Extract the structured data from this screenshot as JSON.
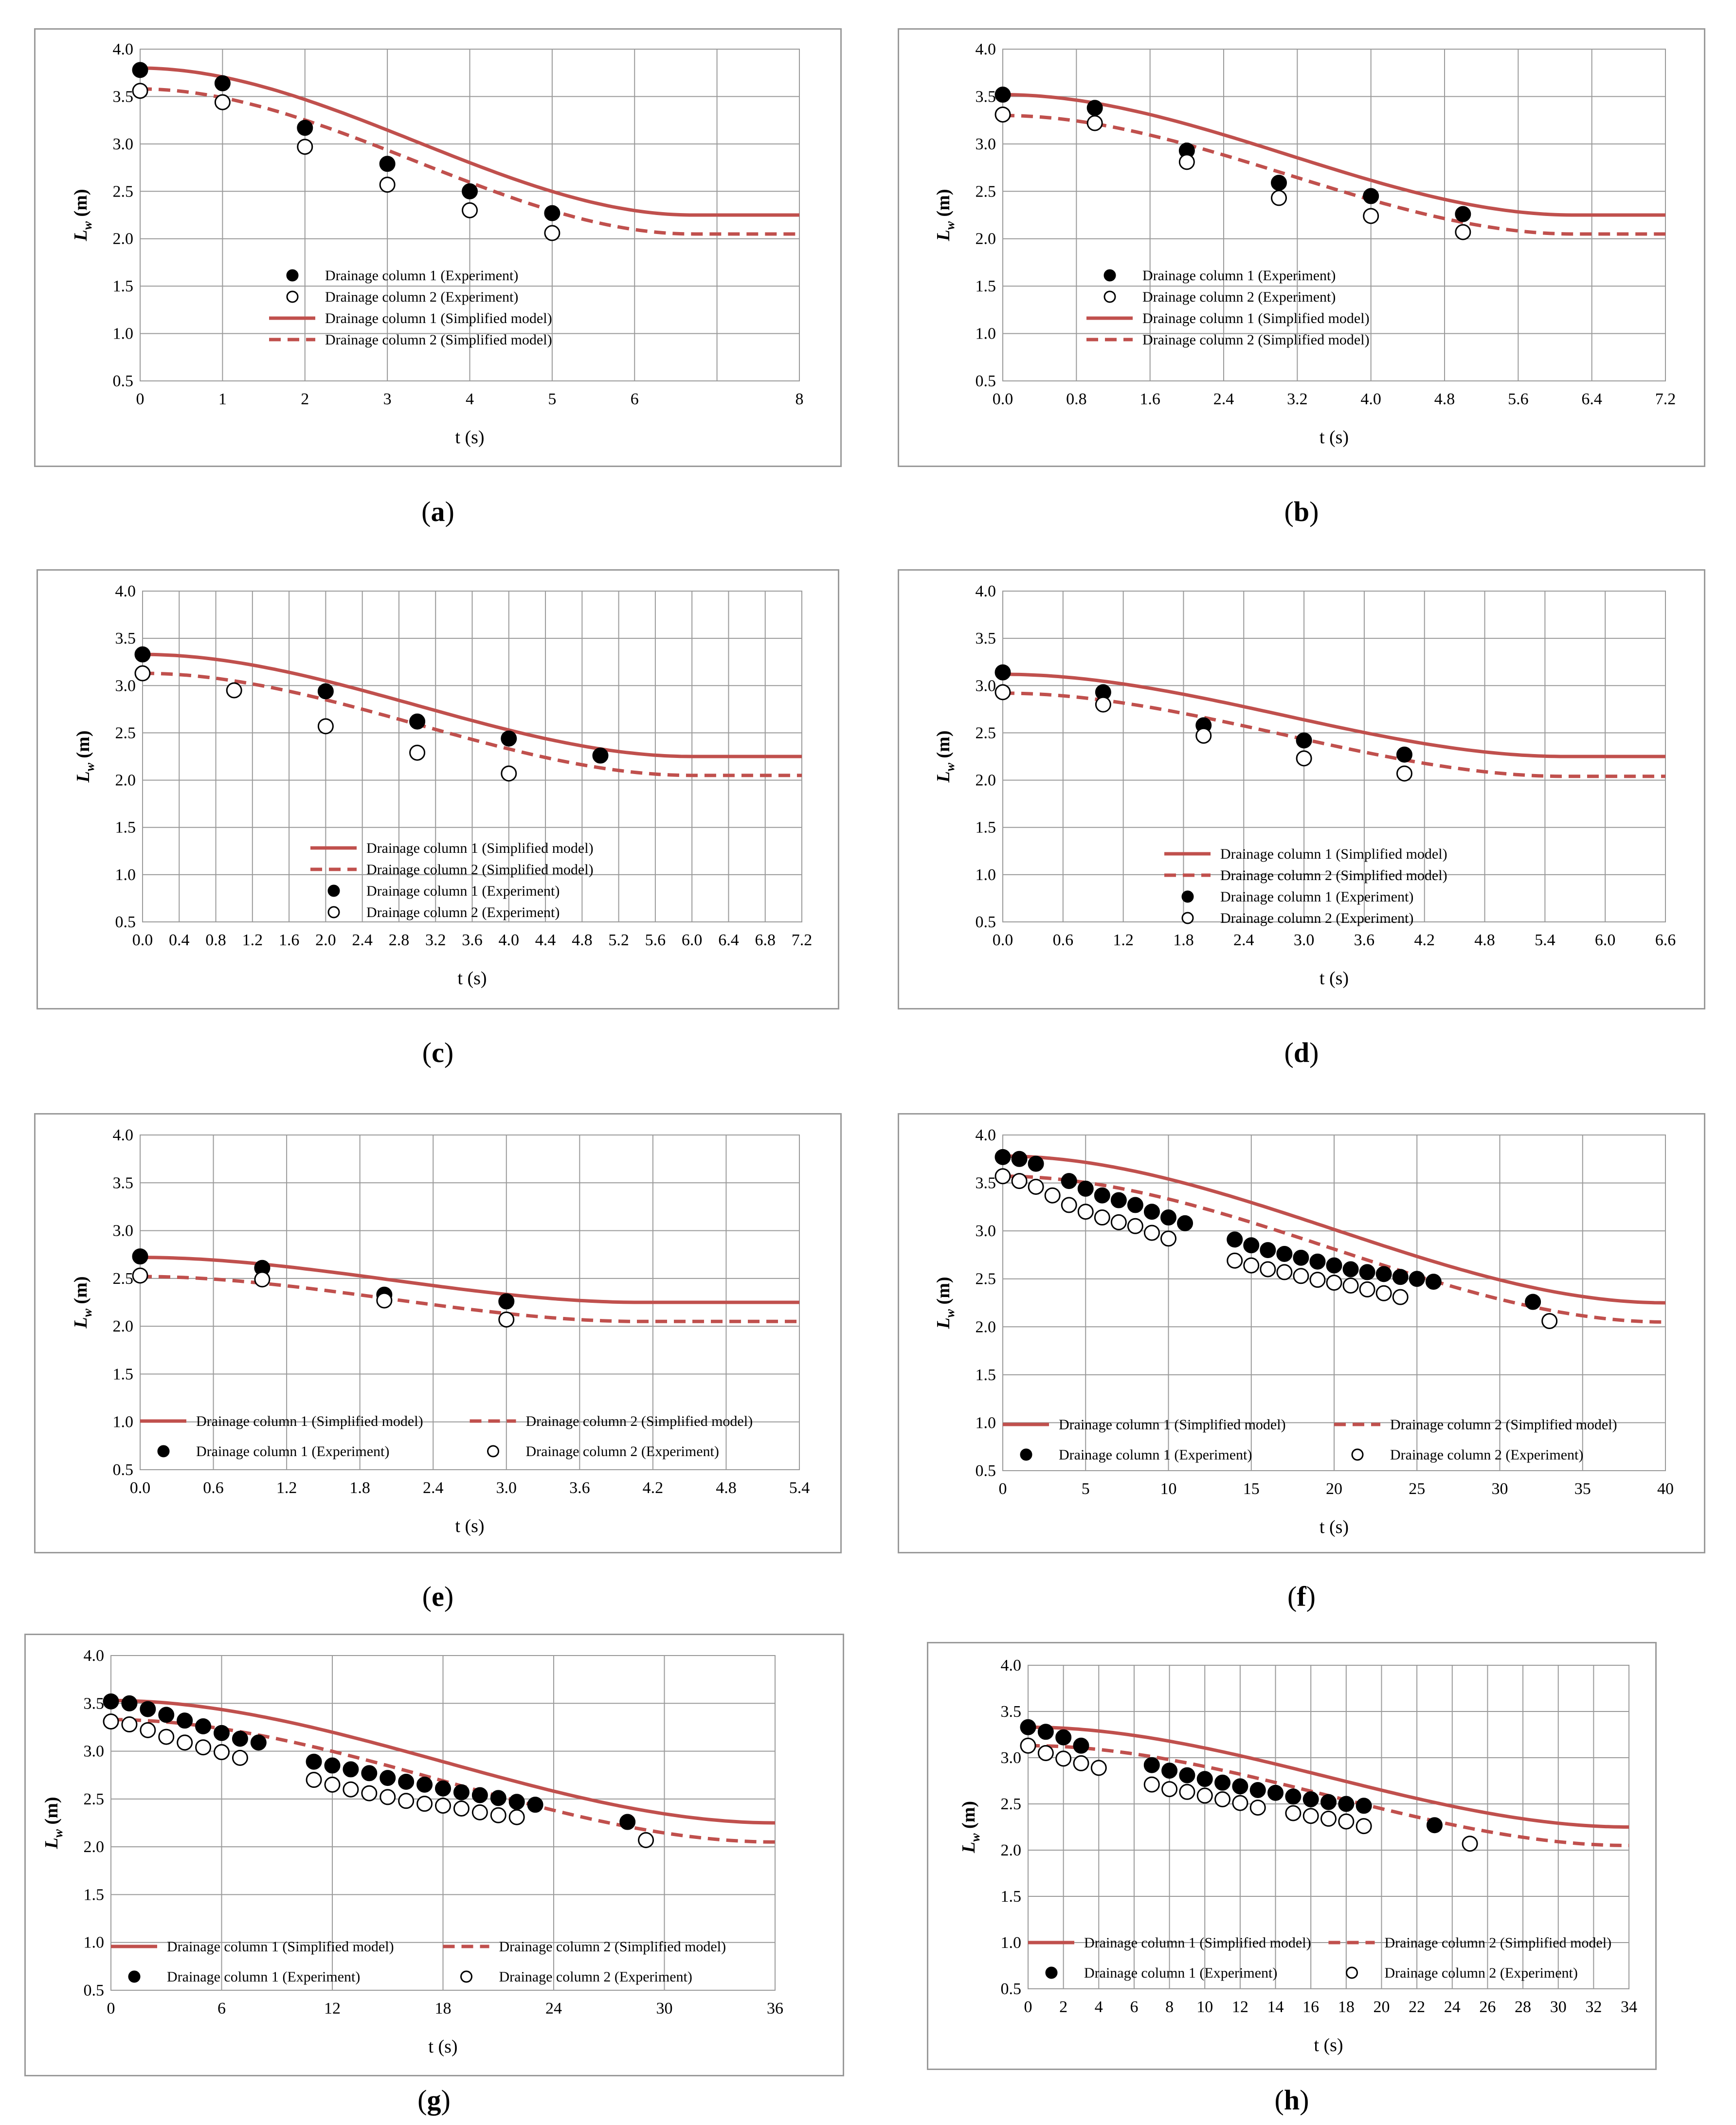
{
  "common": {
    "ylabel_main": "L",
    "ylabel_sub": "w",
    "ylabel_unit": " (m)",
    "xlabel": "t (s)",
    "yticks": [
      "0.5",
      "1.0",
      "1.5",
      "2.0",
      "2.5",
      "3.0",
      "3.5",
      "4.0"
    ],
    "ylim": [
      0.5,
      4.0
    ],
    "colors": {
      "model": "#c0504d",
      "grid": "#9a9a9a",
      "marker": "#000000"
    }
  },
  "legend_labels": {
    "exp1": "Drainage column 1 (Experiment)",
    "exp2": "Drainage column 2 (Experiment)",
    "mod1": "Drainage column 1 (Simplified  model)",
    "mod2": "Drainage column 2 (Simplified  model)"
  },
  "chart_data": [
    {
      "id": "a",
      "caption": "a",
      "type": "line+scatter",
      "xlim": [
        0,
        8
      ],
      "x_gridlines": 8,
      "xticks": [
        "0",
        "1",
        "2",
        "3",
        "4",
        "5",
        "6",
        "8"
      ],
      "xtick_values": [
        0,
        1,
        2,
        3,
        4,
        5,
        6,
        8
      ],
      "legend_layout": "vertical-exp-first",
      "series": [
        {
          "name": "Drainage column 1 (Simplified  model)",
          "kind": "model",
          "style": "solid",
          "start": 3.8,
          "end": 2.25,
          "tend": 6.7
        },
        {
          "name": "Drainage column 2 (Simplified  model)",
          "kind": "model",
          "style": "dashed",
          "start": 3.58,
          "end": 2.05,
          "tend": 6.7
        },
        {
          "name": "Drainage column 1 (Experiment)",
          "kind": "exp",
          "fill": "filled",
          "x": [
            0,
            1,
            2,
            3,
            4,
            5
          ],
          "y": [
            3.78,
            3.64,
            3.17,
            2.79,
            2.5,
            2.27
          ]
        },
        {
          "name": "Drainage column 2 (Experiment)",
          "kind": "exp",
          "fill": "hollow",
          "x": [
            0,
            1,
            2,
            3,
            4,
            5
          ],
          "y": [
            3.56,
            3.44,
            2.97,
            2.57,
            2.3,
            2.06
          ]
        }
      ]
    },
    {
      "id": "b",
      "caption": "b",
      "type": "line+scatter",
      "xlim": [
        0,
        7.2
      ],
      "x_gridlines": 9,
      "xticks": [
        "0.0",
        "0.8",
        "1.6",
        "2.4",
        "3.2",
        "4.0",
        "4.8",
        "5.6",
        "6.4",
        "7.2"
      ],
      "xtick_values": [
        0,
        0.8,
        1.6,
        2.4,
        3.2,
        4.0,
        4.8,
        5.6,
        6.4,
        7.2
      ],
      "legend_layout": "vertical-exp-first",
      "series": [
        {
          "name": "Drainage column 1 (Simplified  model)",
          "kind": "model",
          "style": "solid",
          "start": 3.52,
          "end": 2.25,
          "tend": 6.2
        },
        {
          "name": "Drainage column 2 (Simplified  model)",
          "kind": "model",
          "style": "dashed",
          "start": 3.3,
          "end": 2.05,
          "tend": 6.2
        },
        {
          "name": "Drainage column 1 (Experiment)",
          "kind": "exp",
          "fill": "filled",
          "x": [
            0,
            1,
            2,
            3,
            4,
            5
          ],
          "y": [
            3.52,
            3.38,
            2.93,
            2.59,
            2.45,
            2.26
          ]
        },
        {
          "name": "Drainage column 2 (Experiment)",
          "kind": "exp",
          "fill": "hollow",
          "x": [
            0,
            1,
            2,
            3,
            4,
            5
          ],
          "y": [
            3.31,
            3.22,
            2.81,
            2.43,
            2.24,
            2.07
          ]
        }
      ]
    },
    {
      "id": "c",
      "caption": "c",
      "type": "line+scatter",
      "xlim": [
        0,
        7.2
      ],
      "x_gridlines": 18,
      "xticks": [
        "0.0",
        "0.4",
        "0.8",
        "1.2",
        "1.6",
        "2.0",
        "2.4",
        "2.8",
        "3.2",
        "3.6",
        "4.0",
        "4.4",
        "4.8",
        "5.2",
        "5.6",
        "6.0",
        "6.4",
        "6.8",
        "7.2"
      ],
      "xtick_values": [
        0,
        0.4,
        0.8,
        1.2,
        1.6,
        2.0,
        2.4,
        2.8,
        3.2,
        3.6,
        4.0,
        4.4,
        4.8,
        5.2,
        5.6,
        6.0,
        6.4,
        6.8,
        7.2
      ],
      "legend_layout": "vertical-model-first",
      "series": [
        {
          "name": "Drainage column 1 (Simplified  model)",
          "kind": "model",
          "style": "solid",
          "start": 3.33,
          "end": 2.25,
          "tend": 6.0
        },
        {
          "name": "Drainage column 2 (Simplified  model)",
          "kind": "model",
          "style": "dashed",
          "start": 3.13,
          "end": 2.05,
          "tend": 6.0
        },
        {
          "name": "Drainage column 1 (Experiment)",
          "kind": "exp",
          "fill": "filled",
          "x": [
            0,
            2,
            3,
            4,
            5
          ],
          "y": [
            3.33,
            2.94,
            2.62,
            2.44,
            2.26
          ]
        },
        {
          "name": "Drainage column 2 (Experiment)",
          "kind": "exp",
          "fill": "hollow",
          "x": [
            0,
            1,
            2,
            3,
            4
          ],
          "y": [
            3.13,
            2.95,
            2.57,
            2.29,
            2.07
          ]
        }
      ]
    },
    {
      "id": "d",
      "caption": "d",
      "type": "line+scatter",
      "xlim": [
        0,
        6.6
      ],
      "x_gridlines": 11,
      "xticks": [
        "0.0",
        "0.6",
        "1.2",
        "1.8",
        "2.4",
        "3.0",
        "3.6",
        "4.2",
        "4.8",
        "5.4",
        "6.0",
        "6.6"
      ],
      "xtick_values": [
        0,
        0.6,
        1.2,
        1.8,
        2.4,
        3.0,
        3.6,
        4.2,
        4.8,
        5.4,
        6.0,
        6.6
      ],
      "legend_layout": "vertical-model-first",
      "series": [
        {
          "name": "Drainage column 1 (Simplified  model)",
          "kind": "model",
          "style": "solid",
          "start": 3.12,
          "end": 2.25,
          "tend": 5.6
        },
        {
          "name": "Drainage column 2 (Simplified  model)",
          "kind": "model",
          "style": "dashed",
          "start": 2.92,
          "end": 2.04,
          "tend": 5.6
        },
        {
          "name": "Drainage column 1 (Experiment)",
          "kind": "exp",
          "fill": "filled",
          "x": [
            0,
            1,
            2,
            3,
            4
          ],
          "y": [
            3.14,
            2.93,
            2.58,
            2.42,
            2.27
          ]
        },
        {
          "name": "Drainage column 2 (Experiment)",
          "kind": "exp",
          "fill": "hollow",
          "x": [
            0,
            1,
            2,
            3,
            4
          ],
          "y": [
            2.93,
            2.8,
            2.47,
            2.23,
            2.07
          ]
        }
      ]
    },
    {
      "id": "e",
      "caption": "e",
      "type": "line+scatter",
      "xlim": [
        0,
        5.4
      ],
      "x_gridlines": 9,
      "xticks": [
        "0.0",
        "0.6",
        "1.2",
        "1.8",
        "2.4",
        "3.0",
        "3.6",
        "4.2",
        "4.8",
        "5.4"
      ],
      "xtick_values": [
        0,
        0.6,
        1.2,
        1.8,
        2.4,
        3.0,
        3.6,
        4.2,
        4.8,
        5.4
      ],
      "legend_layout": "grid",
      "series": [
        {
          "name": "Drainage column 1 (Simplified  model)",
          "kind": "model",
          "style": "solid",
          "start": 2.72,
          "end": 2.25,
          "tend": 4.1
        },
        {
          "name": "Drainage column 2 (Simplified  model)",
          "kind": "model",
          "style": "dashed",
          "start": 2.52,
          "end": 2.05,
          "tend": 4.1
        },
        {
          "name": "Drainage column 1 (Experiment)",
          "kind": "exp",
          "fill": "filled",
          "x": [
            0,
            1,
            2,
            3
          ],
          "y": [
            2.73,
            2.61,
            2.33,
            2.26
          ]
        },
        {
          "name": "Drainage column 2 (Experiment)",
          "kind": "exp",
          "fill": "hollow",
          "x": [
            0,
            1,
            2,
            3
          ],
          "y": [
            2.53,
            2.49,
            2.27,
            2.07
          ]
        }
      ]
    },
    {
      "id": "f",
      "caption": "f",
      "type": "line+scatter",
      "xlim": [
        0,
        40
      ],
      "x_gridlines": 8,
      "xticks": [
        "0",
        "5",
        "10",
        "15",
        "20",
        "25",
        "30",
        "35",
        "40"
      ],
      "xtick_values": [
        0,
        5,
        10,
        15,
        20,
        25,
        30,
        35,
        40
      ],
      "legend_layout": "grid",
      "series": [
        {
          "name": "Drainage column 1 (Simplified  model)",
          "kind": "model",
          "style": "solid",
          "start": 3.78,
          "end": 2.25,
          "tend": 40
        },
        {
          "name": "Drainage column 2 (Simplified  model)",
          "kind": "model",
          "style": "dashed",
          "start": 3.57,
          "end": 2.05,
          "tend": 40
        },
        {
          "name": "Drainage column 1 (Experiment)",
          "kind": "exp",
          "fill": "filled",
          "x": [
            0,
            1,
            2,
            4,
            5,
            6,
            7,
            8,
            9,
            10,
            11,
            14,
            15,
            16,
            17,
            18,
            19,
            20,
            21,
            22,
            23,
            24,
            25,
            26,
            32
          ],
          "y": [
            3.77,
            3.75,
            3.7,
            3.52,
            3.44,
            3.37,
            3.32,
            3.27,
            3.2,
            3.14,
            3.08,
            2.91,
            2.85,
            2.8,
            2.76,
            2.72,
            2.68,
            2.64,
            2.6,
            2.57,
            2.55,
            2.52,
            2.5,
            2.47,
            2.26
          ]
        },
        {
          "name": "Drainage column 2 (Experiment)",
          "kind": "exp",
          "fill": "hollow",
          "x": [
            0,
            1,
            2,
            3,
            4,
            5,
            6,
            7,
            8,
            9,
            10,
            14,
            15,
            16,
            17,
            18,
            19,
            20,
            21,
            22,
            23,
            24,
            33
          ],
          "y": [
            3.57,
            3.52,
            3.46,
            3.37,
            3.27,
            3.2,
            3.14,
            3.09,
            3.05,
            2.98,
            2.92,
            2.69,
            2.64,
            2.6,
            2.57,
            2.53,
            2.49,
            2.46,
            2.43,
            2.39,
            2.35,
            2.31,
            2.06
          ]
        }
      ]
    },
    {
      "id": "g",
      "caption": "g",
      "type": "line+scatter",
      "xlim": [
        0,
        36
      ],
      "x_gridlines": 6,
      "xticks": [
        "0",
        "6",
        "12",
        "18",
        "24",
        "30",
        "36"
      ],
      "xtick_values": [
        0,
        6,
        12,
        18,
        24,
        30,
        36
      ],
      "legend_layout": "grid",
      "series": [
        {
          "name": "Drainage column 1 (Simplified  model)",
          "kind": "model",
          "style": "solid",
          "start": 3.53,
          "end": 2.25,
          "tend": 36
        },
        {
          "name": "Drainage column 2 (Simplified  model)",
          "kind": "model",
          "style": "dashed",
          "start": 3.33,
          "end": 2.05,
          "tend": 36
        },
        {
          "name": "Drainage column 1 (Experiment)",
          "kind": "exp",
          "fill": "filled",
          "x": [
            0,
            1,
            2,
            3,
            4,
            5,
            6,
            7,
            8,
            11,
            12,
            13,
            14,
            15,
            16,
            17,
            18,
            19,
            20,
            21,
            22,
            23,
            28
          ],
          "y": [
            3.52,
            3.5,
            3.44,
            3.38,
            3.32,
            3.26,
            3.19,
            3.13,
            3.09,
            2.89,
            2.85,
            2.81,
            2.77,
            2.72,
            2.68,
            2.65,
            2.61,
            2.57,
            2.54,
            2.51,
            2.47,
            2.44,
            2.26
          ]
        },
        {
          "name": "Drainage column 2 (Experiment)",
          "kind": "exp",
          "fill": "hollow",
          "x": [
            0,
            1,
            2,
            3,
            4,
            5,
            6,
            7,
            11,
            12,
            13,
            14,
            15,
            16,
            17,
            18,
            19,
            20,
            21,
            22,
            29
          ],
          "y": [
            3.31,
            3.28,
            3.22,
            3.15,
            3.09,
            3.04,
            2.99,
            2.93,
            2.7,
            2.65,
            2.6,
            2.56,
            2.52,
            2.48,
            2.45,
            2.43,
            2.4,
            2.36,
            2.33,
            2.31,
            2.07
          ]
        }
      ]
    },
    {
      "id": "h",
      "caption": "h",
      "type": "line+scatter",
      "xlim": [
        0,
        34
      ],
      "x_gridlines": 17,
      "xticks": [
        "0",
        "2",
        "4",
        "6",
        "8",
        "10",
        "12",
        "14",
        "16",
        "18",
        "20",
        "22",
        "24",
        "26",
        "28",
        "30",
        "32",
        "34"
      ],
      "xtick_values": [
        0,
        2,
        4,
        6,
        8,
        10,
        12,
        14,
        16,
        18,
        20,
        22,
        24,
        26,
        28,
        30,
        32,
        34
      ],
      "legend_layout": "grid",
      "series": [
        {
          "name": "Drainage column 1 (Simplified  model)",
          "kind": "model",
          "style": "solid",
          "start": 3.33,
          "end": 2.25,
          "tend": 34
        },
        {
          "name": "Drainage column 2 (Simplified  model)",
          "kind": "model",
          "style": "dashed",
          "start": 3.13,
          "end": 2.05,
          "tend": 34
        },
        {
          "name": "Drainage column 1 (Experiment)",
          "kind": "exp",
          "fill": "filled",
          "x": [
            0,
            1,
            2,
            3,
            7,
            8,
            9,
            10,
            11,
            12,
            13,
            14,
            15,
            16,
            17,
            18,
            19,
            23
          ],
          "y": [
            3.33,
            3.28,
            3.22,
            3.13,
            2.92,
            2.86,
            2.81,
            2.77,
            2.73,
            2.69,
            2.65,
            2.62,
            2.58,
            2.55,
            2.52,
            2.5,
            2.48,
            2.27
          ]
        },
        {
          "name": "Drainage column 2 (Experiment)",
          "kind": "exp",
          "fill": "hollow",
          "x": [
            0,
            1,
            2,
            3,
            4,
            7,
            8,
            9,
            10,
            11,
            12,
            13,
            15,
            16,
            17,
            18,
            19,
            25
          ],
          "y": [
            3.13,
            3.05,
            2.99,
            2.94,
            2.89,
            2.71,
            2.66,
            2.63,
            2.59,
            2.55,
            2.51,
            2.46,
            2.4,
            2.37,
            2.34,
            2.31,
            2.26,
            2.07
          ]
        }
      ]
    }
  ]
}
